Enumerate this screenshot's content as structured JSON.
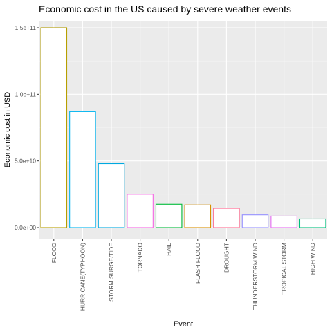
{
  "chart_data": {
    "type": "bar",
    "title": "Economic cost in the US caused by severe weather events",
    "xlabel": "Event",
    "ylabel": "Economic cost in USD",
    "ylim": [
      0,
      157000000000
    ],
    "yticks": [
      0,
      50000000000,
      100000000000,
      150000000000
    ],
    "ytick_labels": [
      "0.0e+00",
      "5.0e+10",
      "1.0e+11",
      "1.5e+11"
    ],
    "grid": true,
    "legend": "none",
    "categories": [
      "FLOOD",
      "HURRICANE(TYPHOON)",
      "STORM SURGE/TIDE",
      "TORNADO",
      "HAIL",
      "FLASH FLOOD",
      "DROUGHT",
      "THUNDERSTORM WIND",
      "TROPICAL STORM",
      "HIGH WIND"
    ],
    "values": [
      150000000000,
      87000000000,
      48000000000,
      25000000000,
      17500000000,
      17000000000,
      14500000000,
      9500000000,
      8600000000,
      6500000000
    ],
    "colors": [
      "#B79F00",
      "#00B4EF",
      "#00A9E0",
      "#F564E3",
      "#00BA38",
      "#D89000",
      "#FF6C91",
      "#9590FF",
      "#E76BF3",
      "#00BF7D"
    ]
  }
}
